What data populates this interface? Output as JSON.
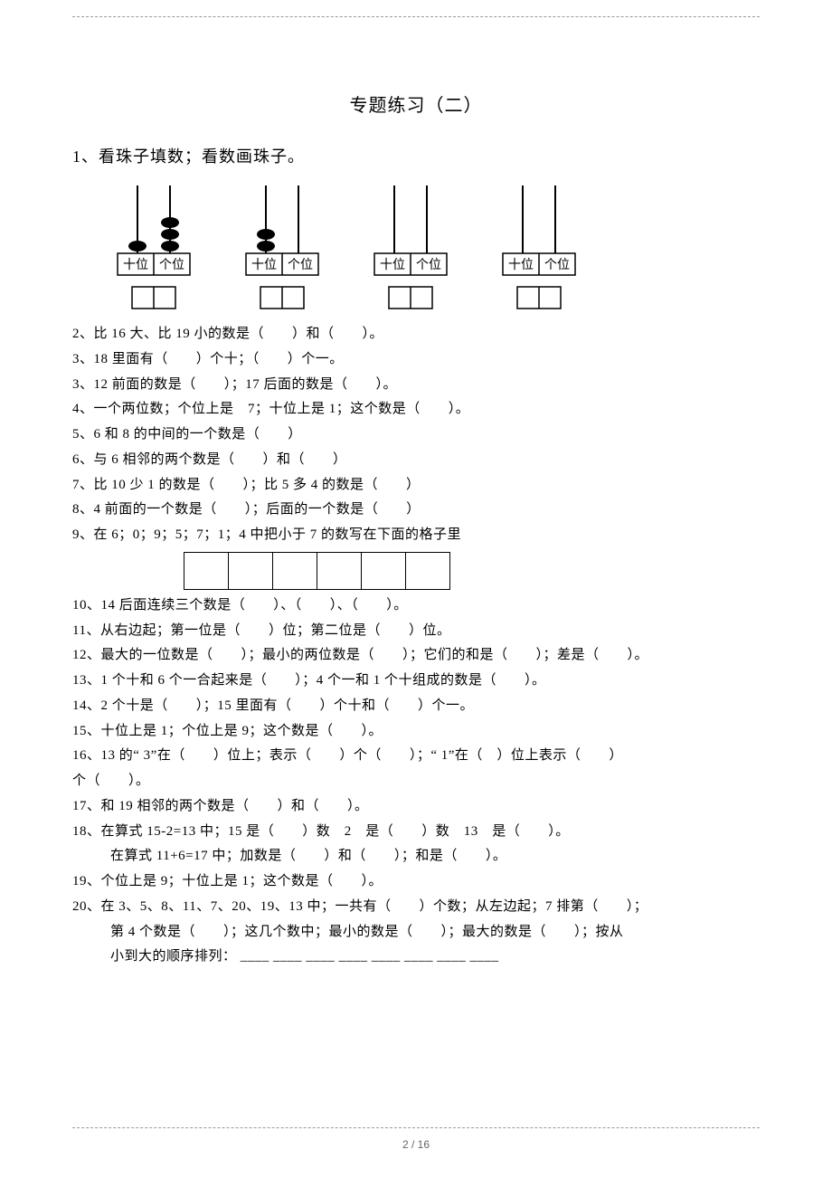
{
  "page": {
    "number": "2 / 16"
  },
  "title": "专题练习（二）",
  "q1": "1、看珠子填数；看数画珠子。",
  "abacus": {
    "label_tens": "十位",
    "label_ones": "个位",
    "beads": [
      {
        "tens": 1,
        "ones": 3
      },
      {
        "tens": 2,
        "ones": 0
      },
      {
        "tens": 0,
        "ones": 0
      },
      {
        "tens": 0,
        "ones": 0
      }
    ],
    "stroke": "#000000",
    "bead_fill": "#000000"
  },
  "lines": {
    "l2": "2、比 16 大、比 19 小的数是（　　）和（　　）。",
    "l3a": "3、18 里面有（　　）个十；（　　）个一。",
    "l3b": "3、12 前面的数是（　　）；17 后面的数是（　　）。",
    "l4": "4、一个两位数；个位上是　7；十位上是 1；这个数是（　　）。",
    "l5": "5、6 和 8 的中间的一个数是（　　）",
    "l6": "6、与 6 相邻的两个数是（　　）和（　　）",
    "l7": "7、比 10 少 1 的数是（　　）；比 5 多 4 的数是（　　）",
    "l8": "8、4 前面的一个数是（　　）；后面的一个数是（　　）",
    "l9": "9、在 6；0；9；5；7；1；4 中把小于 7 的数写在下面的格子里",
    "l10": "10、14 后面连续三个数是（　　）、（　　）、（　　）。",
    "l11": "11、从右边起；第一位是（　　）位；第二位是（　　）位。",
    "l12": "12、最大的一位数是（　　）；最小的两位数是（　　）；它们的和是（　　）；差是（　　）。",
    "l13": "13、1 个十和 6 个一合起来是（　　）；4 个一和 1 个十组成的数是（　　）。",
    "l14": "14、2 个十是（　　）；15 里面有（　　）个十和（　　）个一。",
    "l15": "15、十位上是 1；个位上是 9；这个数是（　　）。",
    "l16a": "16、13 的“ 3”在（　　）位上；表示（　　）个（　　）；“ 1”在（　）位上表示（　　）",
    "l16b": "个（　　）。",
    "l17": "17、和 19 相邻的两个数是（　　）和（　　）。",
    "l18a": "18、在算式 15-2=13 中；15 是（　　）数　2　是（　　）数　13　是（　　）。",
    "l18b": "在算式 11+6=17 中；加数是（　　）和（　　）；和是（　　）。",
    "l19": "19、个位上是 9；十位上是 1；这个数是（　　）。",
    "l20a": "20、在 3、5、8、11、7、20、19、13 中；一共有（　　）个数；从左边起；7 排第（　　）；",
    "l20b": "第 4 个数是（　　）；这几个数中；最小的数是（　　）；最大的数是（　　）；按从",
    "l20c": "小到大的顺序排列： ____ ____ ____ ____ ____ ____ ____ ____"
  },
  "grid_cells": 6
}
